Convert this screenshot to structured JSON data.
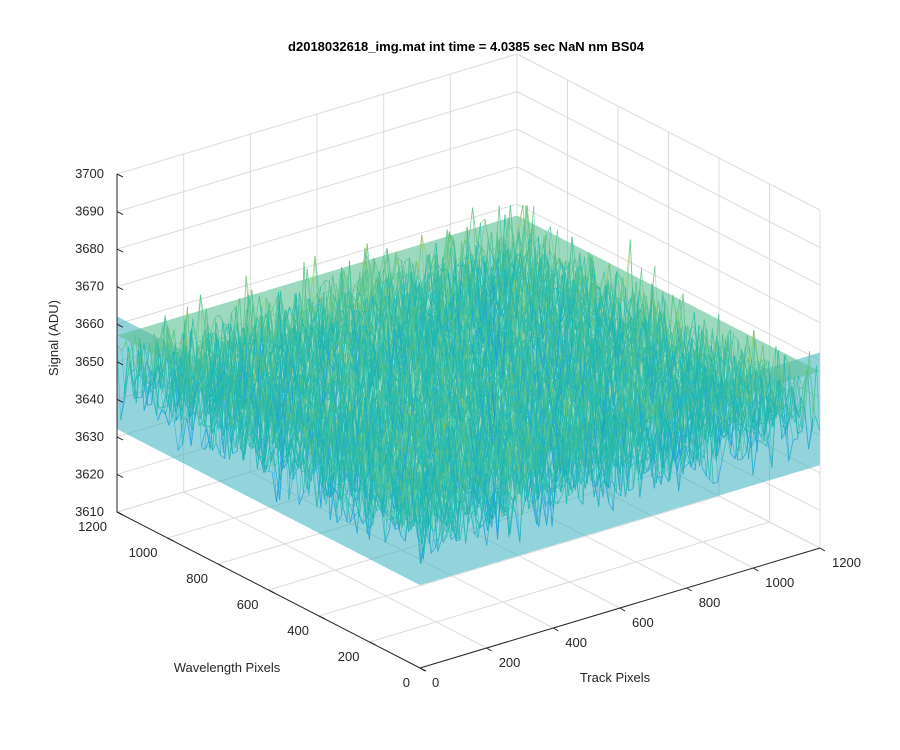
{
  "chart_data": {
    "type": "surface",
    "title": "d2018032618_img.mat int time = 4.0385 sec  NaN nm BS04",
    "xlabel": "Track Pixels",
    "ylabel": "Wavelength Pixels",
    "zlabel": "Signal (ADU)",
    "xlim": [
      0,
      1200
    ],
    "ylim": [
      0,
      1200
    ],
    "zlim": [
      3610,
      3700
    ],
    "x_ticks": [
      "0",
      "200",
      "400",
      "600",
      "800",
      "1000",
      "1200"
    ],
    "y_ticks": [
      "0",
      "200",
      "400",
      "600",
      "800",
      "1000",
      "1200"
    ],
    "z_ticks": [
      "3610",
      "3620",
      "3630",
      "3640",
      "3650",
      "3660",
      "3670",
      "3680",
      "3690",
      "3700"
    ],
    "data_extent": {
      "x": [
        1,
        1200
      ],
      "y": [
        1,
        1200
      ]
    },
    "signal_mean": 3648,
    "signal_range": [
      3615,
      3690
    ],
    "grid": true,
    "colormap": "parula",
    "colors": [
      "#0f5fd0",
      "#1f9fe0",
      "#20b8b0",
      "#5cc48c",
      "#a8c85a",
      "#e0bc38"
    ]
  }
}
